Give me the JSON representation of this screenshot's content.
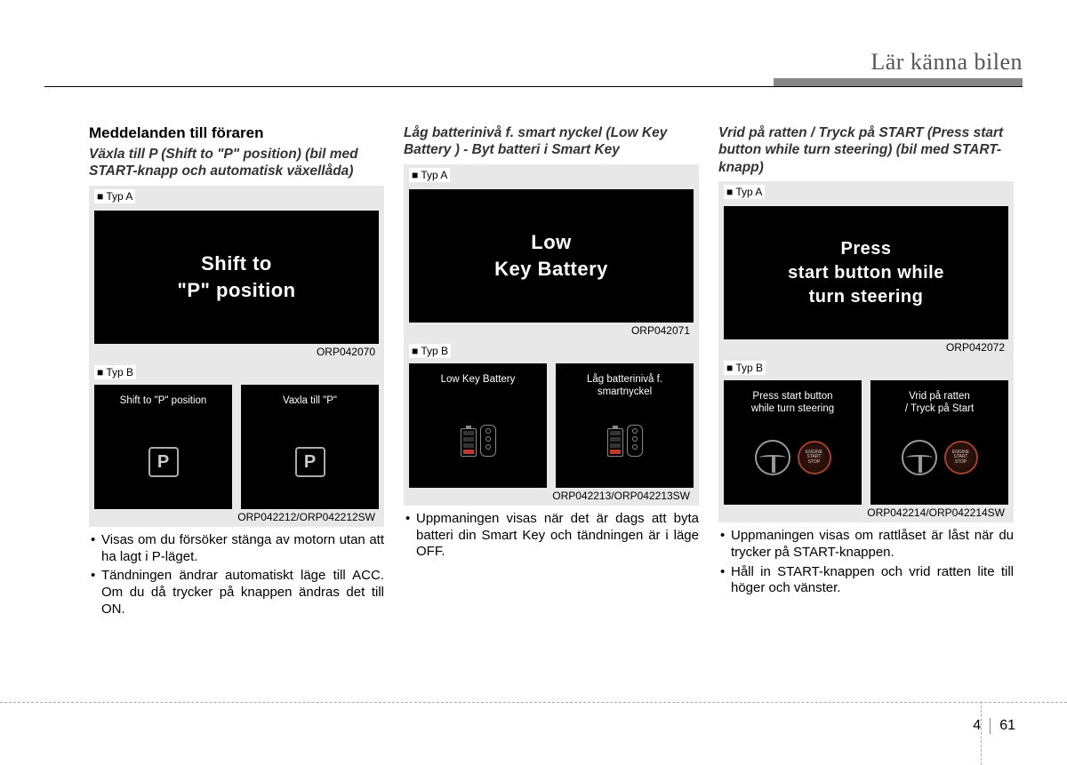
{
  "header": {
    "title": "Lär känna bilen"
  },
  "page_number": {
    "chapter": "4",
    "page": "61"
  },
  "columns": [
    {
      "heading": "Meddelanden till föraren",
      "subheading": "Växla till P (Shift to \"P\" position) (bil med START-knapp och automatisk växellåda)",
      "typeA": {
        "label": "■ Typ A",
        "screen": "Shift to\n\"P\" position",
        "code": "ORP042070"
      },
      "typeB": {
        "label": "■ Typ B",
        "left": "Shift to \"P\" position",
        "right": "Vaxla till \"P\"",
        "code": "ORP042212/ORP042212SW"
      },
      "bullets": [
        "Visas om du försöker stänga av motorn utan att ha lagt i P-läget.",
        "Tändningen ändrar automatiskt läge till ACC. Om du då trycker på knappen ändras det till ON."
      ]
    },
    {
      "subheading": "Låg batterinivå f. smart nyckel (Low Key Battery ) - Byt batteri i Smart Key",
      "typeA": {
        "label": "■ Typ A",
        "screen": "Low\nKey Battery",
        "code": "ORP042071"
      },
      "typeB": {
        "label": "■ Typ B",
        "left": "Low Key Battery",
        "right": "Låg batterinivå f.\nsmartnyckel",
        "code": "ORP042213/ORP042213SW"
      },
      "bullets": [
        "Uppmaningen visas när det är dags att byta batteri din Smart Key och tändningen är i läge OFF."
      ]
    },
    {
      "subheading": "Vrid på ratten / Tryck på START (Press start button while turn steering) (bil med START-knapp)",
      "typeA": {
        "label": "■ Typ A",
        "screen": "Press\nstart button while\nturn steering",
        "code": "ORP042072"
      },
      "typeB": {
        "label": "■ Typ B",
        "left": "Press start button\nwhile turn steering",
        "right": "Vrid på ratten\n/ Tryck på Start",
        "code": "ORP042214/ORP042214SW"
      },
      "bullets": [
        "Uppmaningen visas om rattlåset är låst när du trycker på START-knappen.",
        "Håll in START-knappen och vrid ratten lite till höger och vänster."
      ]
    }
  ],
  "startbtn_text": "ENGINE\nSTART\nSTOP"
}
